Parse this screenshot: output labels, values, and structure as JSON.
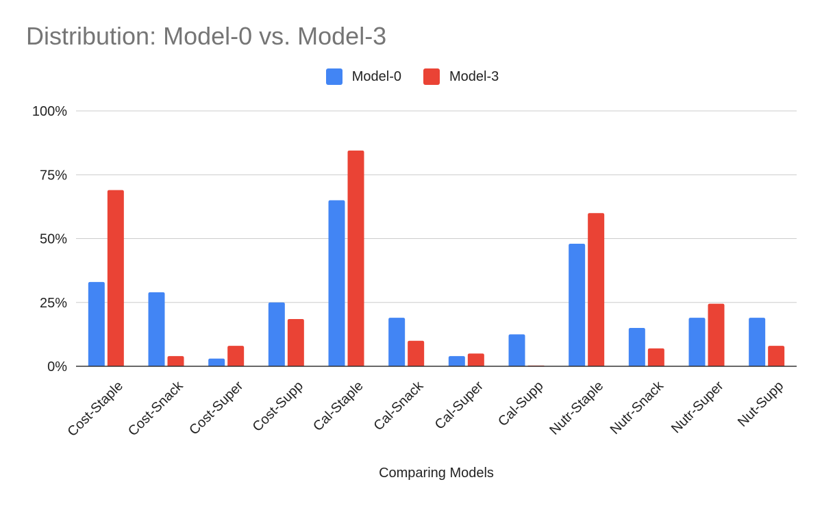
{
  "chart_data": {
    "type": "bar",
    "title": "Distribution: Model-0 vs. Model-3",
    "xlabel": "Comparing Models",
    "ylabel": "",
    "ylim": [
      0,
      100
    ],
    "y_ticks": [
      "0%",
      "25%",
      "50%",
      "75%",
      "100%"
    ],
    "y_tick_values": [
      0,
      25,
      50,
      75,
      100
    ],
    "grid": true,
    "legend_position": "top-center",
    "categories": [
      "Cost-Staple",
      "Cost-Snack",
      "Cost-Super",
      "Cost-Supp",
      "Cal-Staple",
      "Cal-Snack",
      "Cal-Super",
      "Cal-Supp",
      "Nutr-Staple",
      "Nutr-Snack",
      "Nutr-Super",
      "Nut-Supp"
    ],
    "series": [
      {
        "name": "Model-0",
        "color": "#4285f4",
        "values": [
          33,
          29,
          3,
          25,
          65,
          19,
          4,
          12.5,
          48,
          15,
          19,
          19
        ]
      },
      {
        "name": "Model-3",
        "color": "#ea4335",
        "values": [
          69,
          4,
          8,
          18.5,
          84.5,
          10,
          5,
          0.3,
          60,
          7,
          24.5,
          8
        ]
      }
    ]
  }
}
